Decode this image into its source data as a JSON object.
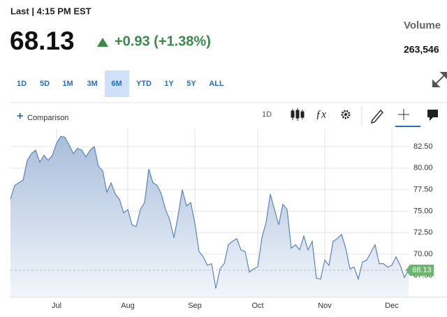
{
  "header": {
    "status": "Last | 4:15 PM EST",
    "price": "68.13",
    "change": "+0.93 (+1.38%)",
    "volume_label": "Volume",
    "volume": "263,546"
  },
  "ranges": {
    "items": [
      "1D",
      "5D",
      "1M",
      "3M",
      "6M",
      "YTD",
      "1Y",
      "5Y",
      "ALL"
    ],
    "active": "6M"
  },
  "toolbar": {
    "comparison": "Comparison",
    "interval": "1D"
  },
  "chart_data": {
    "type": "area",
    "color": "#5b84b8",
    "categories": [
      null,
      null,
      null,
      null,
      null,
      null,
      null,
      null,
      null,
      null,
      null,
      "Jul",
      null,
      null,
      null,
      null,
      null,
      null,
      null,
      null,
      null,
      null,
      null,
      null,
      null,
      null,
      null,
      null,
      "Aug",
      null,
      null,
      null,
      null,
      null,
      null,
      null,
      null,
      null,
      null,
      null,
      null,
      null,
      null,
      null,
      "Sep",
      null,
      null,
      null,
      null,
      null,
      null,
      null,
      null,
      null,
      null,
      null,
      null,
      null,
      null,
      "Oct",
      null,
      null,
      null,
      null,
      null,
      null,
      null,
      null,
      null,
      null,
      null,
      null,
      null,
      null,
      null,
      "Nov",
      null,
      null,
      null,
      null,
      null,
      null,
      null,
      null,
      null,
      null,
      null,
      null,
      null,
      null,
      null,
      "Dec",
      null,
      null,
      null,
      null
    ],
    "values": [
      76.4,
      78.0,
      78.3,
      78.6,
      80.9,
      81.7,
      82.1,
      80.7,
      81.5,
      80.9,
      81.5,
      82.9,
      83.7,
      83.6,
      82.7,
      81.7,
      82.3,
      82.1,
      81.3,
      82.1,
      82.5,
      80.2,
      79.7,
      77.2,
      78.3,
      77.0,
      76.4,
      74.8,
      75.2,
      73.4,
      73.2,
      75.2,
      76.0,
      79.9,
      78.3,
      78.0,
      77.0,
      75.2,
      74.0,
      71.9,
      74.5,
      77.5,
      75.6,
      76.0,
      73.6,
      70.3,
      69.7,
      68.7,
      68.9,
      66.0,
      68.3,
      68.9,
      71.1,
      71.5,
      71.8,
      70.5,
      70.3,
      67.9,
      68.3,
      68.5,
      71.9,
      73.7,
      77.0,
      75.2,
      73.4,
      75.8,
      75.2,
      70.7,
      71.1,
      70.5,
      72.1,
      70.5,
      71.5,
      67.2,
      67.1,
      69.3,
      68.7,
      71.5,
      71.8,
      72.3,
      70.7,
      68.3,
      68.5,
      67.1,
      69.1,
      69.3,
      70.2,
      71.1,
      68.9,
      68.9,
      68.5,
      68.7,
      69.7,
      68.7,
      67.3,
      68.13
    ],
    "ylim": [
      65,
      84.5
    ],
    "yticks": [
      {
        "value": 67.5,
        "label": "67.50"
      },
      {
        "value": 70,
        "label": "70.00"
      },
      {
        "value": 72.5,
        "label": "72.50"
      },
      {
        "value": 75,
        "label": "75.00"
      },
      {
        "value": 77.5,
        "label": "77.50"
      },
      {
        "value": 80,
        "label": "80.00"
      },
      {
        "value": 82.5,
        "label": "82.50"
      }
    ],
    "grid": true
  }
}
